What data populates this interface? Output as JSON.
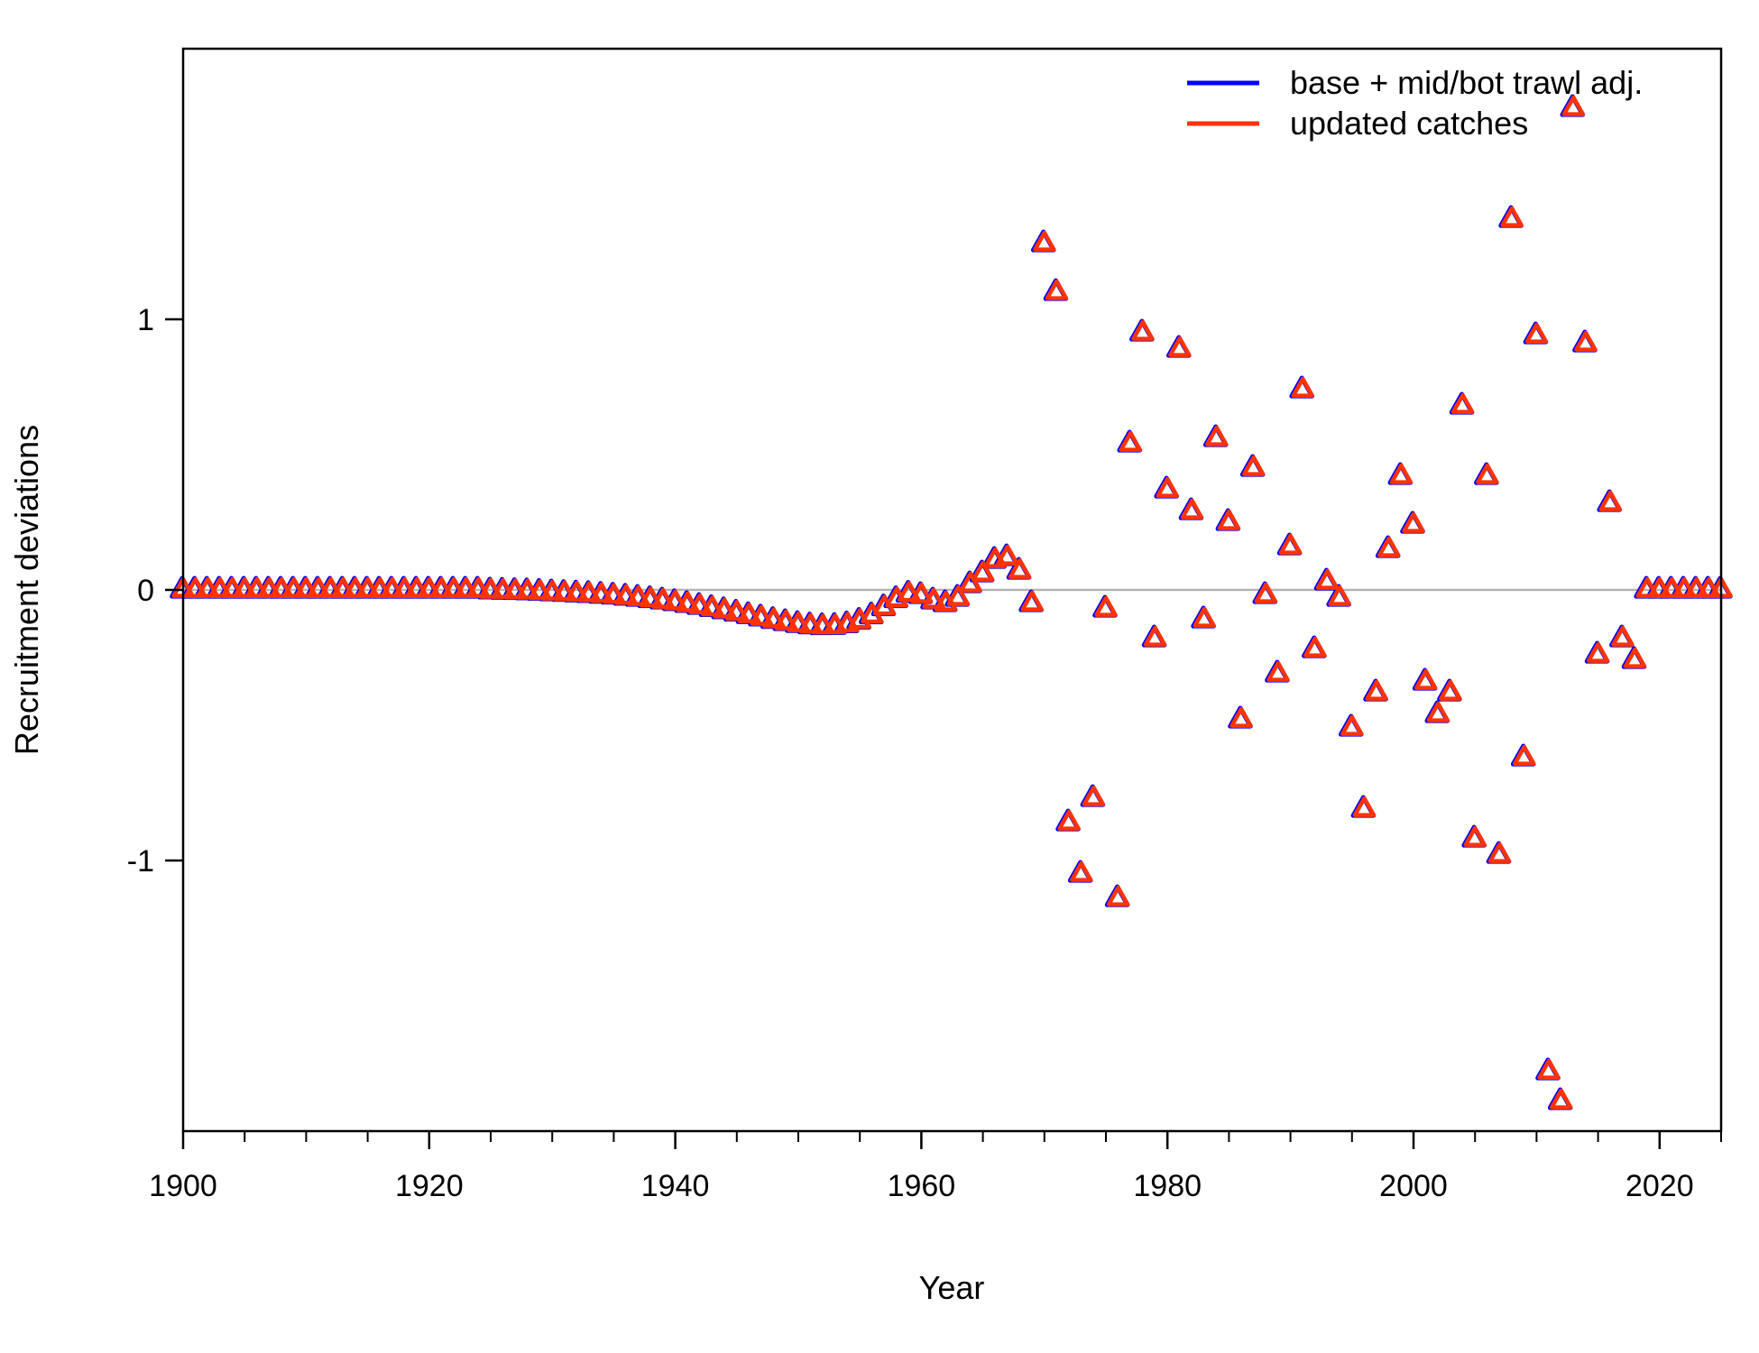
{
  "chart_data": {
    "type": "scatter",
    "title": "",
    "xlabel": "Year",
    "ylabel": "Recruitment deviations",
    "xlim": [
      1900,
      2025
    ],
    "ylim": [
      -2.0,
      2.0
    ],
    "x_ticks": [
      1900,
      1920,
      1940,
      1960,
      1980,
      2000,
      2020
    ],
    "y_ticks": [
      -1,
      0,
      1
    ],
    "y_tick_labels": [
      "-1",
      "0",
      "1"
    ],
    "reference_line": 0,
    "grid": false,
    "legend_position": "top-right",
    "colors": {
      "base": "#0000ff",
      "updated": "#ff3300",
      "reference": "#b3b3b3",
      "axis": "#000000"
    },
    "marker": "triangle",
    "series": [
      {
        "name": "base + mid/bot trawl adj.",
        "x": [
          1900,
          1901,
          1902,
          1903,
          1904,
          1905,
          1906,
          1907,
          1908,
          1909,
          1910,
          1911,
          1912,
          1913,
          1914,
          1915,
          1916,
          1917,
          1918,
          1919,
          1920,
          1921,
          1922,
          1923,
          1924,
          1925,
          1926,
          1927,
          1928,
          1929,
          1930,
          1931,
          1932,
          1933,
          1934,
          1935,
          1936,
          1937,
          1938,
          1939,
          1940,
          1941,
          1942,
          1943,
          1944,
          1945,
          1946,
          1947,
          1948,
          1949,
          1950,
          1951,
          1952,
          1953,
          1954,
          1955,
          1956,
          1957,
          1958,
          1959,
          1960,
          1961,
          1962,
          1963,
          1964,
          1965,
          1966,
          1967,
          1968,
          1969,
          1970,
          1971,
          1972,
          1973,
          1974,
          1975,
          1976,
          1977,
          1978,
          1979,
          1980,
          1981,
          1982,
          1983,
          1984,
          1985,
          1986,
          1987,
          1988,
          1989,
          1990,
          1991,
          1992,
          1993,
          1994,
          1995,
          1996,
          1997,
          1998,
          1999,
          2000,
          2001,
          2002,
          2003,
          2004,
          2005,
          2006,
          2007,
          2008,
          2009,
          2010,
          2011,
          2012,
          2013,
          2014,
          2015,
          2016,
          2017,
          2018,
          2019,
          2020,
          2021,
          2022,
          2023,
          2024,
          2025
        ],
        "y": [
          0,
          0,
          0,
          0,
          0,
          0,
          0,
          0,
          0,
          0,
          0,
          0,
          0,
          0,
          0,
          0,
          0,
          0,
          0,
          0,
          0,
          0,
          0,
          0,
          0,
          -0.003,
          -0.004,
          -0.005,
          -0.006,
          -0.008,
          -0.01,
          -0.012,
          -0.014,
          -0.016,
          -0.019,
          -0.022,
          -0.026,
          -0.03,
          -0.035,
          -0.04,
          -0.046,
          -0.053,
          -0.06,
          -0.068,
          -0.076,
          -0.085,
          -0.094,
          -0.103,
          -0.112,
          -0.12,
          -0.127,
          -0.132,
          -0.135,
          -0.134,
          -0.128,
          -0.115,
          -0.095,
          -0.065,
          -0.035,
          -0.015,
          -0.02,
          -0.04,
          -0.05,
          -0.03,
          0.02,
          0.06,
          0.11,
          0.12,
          0.07,
          -0.05,
          1.28,
          1.1,
          -0.86,
          -1.05,
          -0.77,
          -0.07,
          -1.14,
          0.54,
          0.95,
          -0.18,
          0.37,
          0.89,
          0.29,
          -0.11,
          0.56,
          0.25,
          -0.48,
          0.45,
          -0.02,
          -0.31,
          0.16,
          0.74,
          -0.22,
          0.03,
          -0.03,
          -0.51,
          -0.81,
          -0.38,
          0.15,
          0.42,
          0.24,
          -0.34,
          -0.46,
          -0.38,
          0.68,
          -0.92,
          0.42,
          -0.98,
          1.37,
          -0.62,
          0.94,
          -1.78,
          -1.89,
          1.78,
          0.91,
          -0.24,
          0.32,
          -0.18,
          -0.26,
          0,
          0,
          0,
          0,
          0,
          0,
          0
        ]
      },
      {
        "name": "updated catches",
        "x": [
          1900,
          1901,
          1902,
          1903,
          1904,
          1905,
          1906,
          1907,
          1908,
          1909,
          1910,
          1911,
          1912,
          1913,
          1914,
          1915,
          1916,
          1917,
          1918,
          1919,
          1920,
          1921,
          1922,
          1923,
          1924,
          1925,
          1926,
          1927,
          1928,
          1929,
          1930,
          1931,
          1932,
          1933,
          1934,
          1935,
          1936,
          1937,
          1938,
          1939,
          1940,
          1941,
          1942,
          1943,
          1944,
          1945,
          1946,
          1947,
          1948,
          1949,
          1950,
          1951,
          1952,
          1953,
          1954,
          1955,
          1956,
          1957,
          1958,
          1959,
          1960,
          1961,
          1962,
          1963,
          1964,
          1965,
          1966,
          1967,
          1968,
          1969,
          1970,
          1971,
          1972,
          1973,
          1974,
          1975,
          1976,
          1977,
          1978,
          1979,
          1980,
          1981,
          1982,
          1983,
          1984,
          1985,
          1986,
          1987,
          1988,
          1989,
          1990,
          1991,
          1992,
          1993,
          1994,
          1995,
          1996,
          1997,
          1998,
          1999,
          2000,
          2001,
          2002,
          2003,
          2004,
          2005,
          2006,
          2007,
          2008,
          2009,
          2010,
          2011,
          2012,
          2013,
          2014,
          2015,
          2016,
          2017,
          2018,
          2019,
          2020,
          2021,
          2022,
          2023,
          2024,
          2025
        ],
        "y": [
          0,
          0,
          0,
          0,
          0,
          0,
          0,
          0,
          0,
          0,
          0,
          0,
          0,
          0,
          0,
          0,
          0,
          0,
          0,
          0,
          0,
          0,
          0,
          0,
          0,
          -0.003,
          -0.004,
          -0.005,
          -0.006,
          -0.008,
          -0.01,
          -0.012,
          -0.014,
          -0.016,
          -0.019,
          -0.022,
          -0.026,
          -0.03,
          -0.035,
          -0.04,
          -0.046,
          -0.053,
          -0.06,
          -0.068,
          -0.076,
          -0.085,
          -0.094,
          -0.103,
          -0.112,
          -0.12,
          -0.127,
          -0.132,
          -0.135,
          -0.134,
          -0.128,
          -0.115,
          -0.095,
          -0.065,
          -0.035,
          -0.015,
          -0.02,
          -0.04,
          -0.05,
          -0.03,
          0.02,
          0.06,
          0.11,
          0.12,
          0.07,
          -0.05,
          1.28,
          1.1,
          -0.86,
          -1.05,
          -0.77,
          -0.07,
          -1.14,
          0.54,
          0.95,
          -0.18,
          0.37,
          0.89,
          0.29,
          -0.11,
          0.56,
          0.25,
          -0.48,
          0.45,
          -0.02,
          -0.31,
          0.16,
          0.74,
          -0.22,
          0.03,
          -0.03,
          -0.51,
          -0.81,
          -0.38,
          0.15,
          0.42,
          0.24,
          -0.34,
          -0.46,
          -0.38,
          0.68,
          -0.92,
          0.42,
          -0.98,
          1.37,
          -0.62,
          0.94,
          -1.78,
          -1.89,
          1.78,
          0.91,
          -0.24,
          0.32,
          -0.18,
          -0.26,
          0,
          0,
          0,
          0,
          0,
          0,
          0
        ]
      }
    ]
  }
}
